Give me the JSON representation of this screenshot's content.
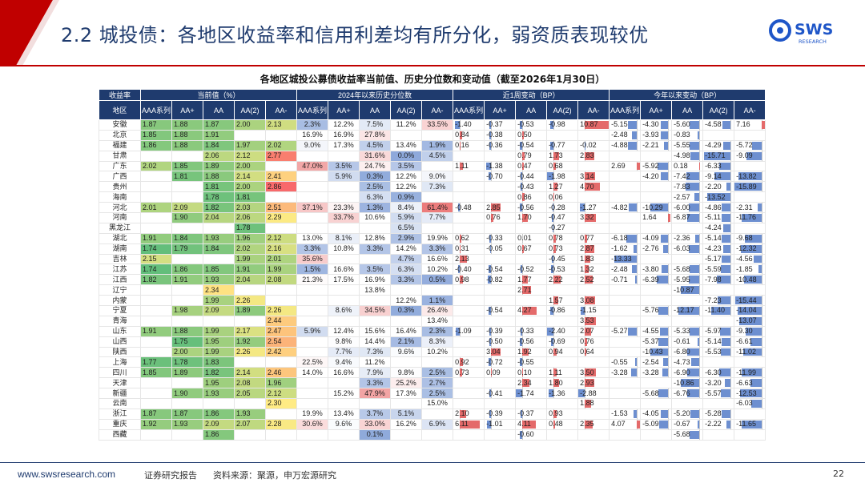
{
  "header": {
    "title": "2.2 城投债：各地区收益率和信用利差均有所分化，弱资质表现较优",
    "logo_text": "SWS",
    "logo_sub": "RESEARCH",
    "accent": "#c00000",
    "logo_color": "#1f56c8"
  },
  "table_title": "各地区城投公募债收益率当前值、历史分位数和变动值（截至2026年1月30日）",
  "col_groups": {
    "yield_label": "收益率",
    "current": "当前值（%）",
    "pct": "2024年以来历史分位数",
    "w1": "近1周变动（BP）",
    "ytd": "今年以来变动（BP）"
  },
  "region_label": "地区",
  "sub_cols": [
    "AAA系列",
    "AA+",
    "AA",
    "AA(2)",
    "AA-"
  ],
  "rows": [
    {
      "r": "安徽",
      "cur": [
        "1.87",
        "1.88",
        "1.87",
        "2.00",
        "2.13"
      ],
      "pct": [
        "2.3%",
        "12.2%",
        "7.5%",
        "11.2%",
        "33.5%"
      ],
      "w1": [
        "-1.40",
        "-0.37",
        "-0.53",
        "-0.98",
        "10.87"
      ],
      "ytd": [
        "-5.15",
        "-4.30",
        "-5.60",
        "-4.58",
        "7.16"
      ]
    },
    {
      "r": "北京",
      "cur": [
        "1.85",
        "1.88",
        "1.91",
        "",
        ""
      ],
      "pct": [
        "16.9%",
        "16.9%",
        "27.8%",
        "",
        ""
      ],
      "w1": [
        "0.84",
        "-0.38",
        "0.50",
        "",
        ""
      ],
      "ytd": [
        "-2.48",
        "-3.93",
        "-0.83",
        "",
        ""
      ]
    },
    {
      "r": "福建",
      "cur": [
        "1.86",
        "1.88",
        "1.84",
        "1.97",
        "2.02"
      ],
      "pct": [
        "9.0%",
        "17.3%",
        "4.5%",
        "13.4%",
        "1.9%"
      ],
      "w1": [
        "0.16",
        "-0.36",
        "-0.54",
        "-0.77",
        "-0.02"
      ],
      "ytd": [
        "-4.88",
        "-2.21",
        "-5.55",
        "-4.29",
        "-5.72"
      ]
    },
    {
      "r": "甘肃",
      "cur": [
        "",
        "",
        "2.06",
        "2.12",
        "2.77"
      ],
      "pct": [
        "",
        "",
        "31.6%",
        "0.0%",
        "4.5%"
      ],
      "w1": [
        "",
        "",
        "0.79",
        "1.73",
        "2.83"
      ],
      "ytd": [
        "",
        "",
        "-4.98",
        "-15.71",
        "-9.09"
      ]
    },
    {
      "r": "广东",
      "cur": [
        "2.02",
        "1.85",
        "1.89",
        "2.00",
        ""
      ],
      "pct": [
        "47.0%",
        "3.5%",
        "24.7%",
        "3.5%",
        ""
      ],
      "w1": [
        "1.11",
        "-1.38",
        "0.47",
        "0.68",
        ""
      ],
      "ytd": [
        "2.69",
        "-5.92",
        "0.18",
        "-6.33",
        ""
      ]
    },
    {
      "r": "广西",
      "cur": [
        "",
        "1.81",
        "1.88",
        "2.14",
        "2.41"
      ],
      "pct": [
        "",
        "5.9%",
        "0.3%",
        "12.2%",
        "9.0%"
      ],
      "w1": [
        "",
        "-0.70",
        "-0.44",
        "-1.98",
        "3.14"
      ],
      "ytd": [
        "",
        "-4.20",
        "-7.42",
        "-9.14",
        "-13.82"
      ]
    },
    {
      "r": "贵州",
      "cur": [
        "",
        "",
        "1.81",
        "2.00",
        "2.86"
      ],
      "pct": [
        "",
        "",
        "2.5%",
        "12.2%",
        "7.3%"
      ],
      "w1": [
        "",
        "",
        "-0.43",
        "1.27",
        "4.70"
      ],
      "ytd": [
        "",
        "",
        "-7.83",
        "-2.20",
        "-15.89"
      ]
    },
    {
      "r": "海南",
      "cur": [
        "",
        "",
        "1.78",
        "1.81",
        ""
      ],
      "pct": [
        "",
        "",
        "6.3%",
        "0.9%",
        ""
      ],
      "w1": [
        "",
        "",
        "0.86",
        "0.06",
        ""
      ],
      "ytd": [
        "",
        "",
        "-2.57",
        "-13.52",
        ""
      ]
    },
    {
      "r": "河北",
      "cur": [
        "2.01",
        "2.09",
        "1.82",
        "2.03",
        "2.51"
      ],
      "pct": [
        "37.1%",
        "23.3%",
        "1.3%",
        "8.4%",
        "61.4%"
      ],
      "w1": [
        "-0.48",
        "2.85",
        "-0.56",
        "-0.28",
        "-1.27"
      ],
      "ytd": [
        "-4.82",
        "-10.29",
        "-6.00",
        "-4.86",
        "-2.31"
      ]
    },
    {
      "r": "河南",
      "cur": [
        "",
        "1.90",
        "2.04",
        "2.06",
        "2.29"
      ],
      "pct": [
        "",
        "33.7%",
        "10.6%",
        "5.9%",
        "7.7%"
      ],
      "w1": [
        "",
        "0.76",
        "1.70",
        "-0.47",
        "3.32"
      ],
      "ytd": [
        "",
        "1.64",
        "-6.87",
        "-5.11",
        "-11.76"
      ]
    },
    {
      "r": "黑龙江",
      "cur": [
        "",
        "",
        "",
        "1.78",
        ""
      ],
      "pct": [
        "",
        "",
        "",
        "6.5%",
        ""
      ],
      "w1": [
        "",
        "",
        "",
        "-0.27",
        ""
      ],
      "ytd": [
        "",
        "",
        "",
        "-4.24",
        ""
      ]
    },
    {
      "r": "湖北",
      "cur": [
        "1.91",
        "1.84",
        "1.93",
        "1.96",
        "2.12"
      ],
      "pct": [
        "13.0%",
        "8.1%",
        "12.8%",
        "2.9%",
        "19.9%"
      ],
      "w1": [
        "0.62",
        "-0.33",
        "0.01",
        "0.78",
        "0.77"
      ],
      "ytd": [
        "-6.18",
        "-4.09",
        "-2.36",
        "-5.14",
        "-9.68"
      ]
    },
    {
      "r": "湖南",
      "cur": [
        "1.74",
        "1.79",
        "1.84",
        "2.02",
        "2.16"
      ],
      "pct": [
        "3.3%",
        "10.8%",
        "3.3%",
        "14.2%",
        "3.3%"
      ],
      "w1": [
        "0.31",
        "-0.05",
        "0.67",
        "0.73",
        "2.87"
      ],
      "ytd": [
        "-1.62",
        "-2.76",
        "-6.03",
        "-4.23",
        "-12.32"
      ]
    },
    {
      "r": "吉林",
      "cur": [
        "2.15",
        "",
        "",
        "1.99",
        "2.01"
      ],
      "pct": [
        "35.6%",
        "",
        "",
        "4.7%",
        "16.6%"
      ],
      "w1": [
        "2.13",
        "",
        "",
        "-0.45",
        "1.83"
      ],
      "ytd": [
        "-13.33",
        "",
        "",
        "-5.17",
        "-4.56"
      ]
    },
    {
      "r": "江苏",
      "cur": [
        "1.74",
        "1.86",
        "1.85",
        "1.91",
        "1.99"
      ],
      "pct": [
        "1.5%",
        "16.6%",
        "3.5%",
        "6.3%",
        "10.2%"
      ],
      "w1": [
        "-0.40",
        "-0.54",
        "-0.52",
        "-0.53",
        "1.32"
      ],
      "ytd": [
        "-2.48",
        "-3.80",
        "-5.68",
        "-5.59",
        "-1.85"
      ]
    },
    {
      "r": "江西",
      "cur": [
        "1.82",
        "1.91",
        "1.93",
        "2.04",
        "2.08"
      ],
      "pct": [
        "21.3%",
        "17.5%",
        "16.9%",
        "3.3%",
        "0.5%"
      ],
      "w1": [
        "0.98",
        "-0.82",
        "1.77",
        "2.22",
        "2.52"
      ],
      "ytd": [
        "-0.71",
        "-6.39",
        "-5.95",
        "-7.98",
        "-10.48"
      ]
    },
    {
      "r": "辽宁",
      "cur": [
        "",
        "",
        "2.34",
        "",
        ""
      ],
      "pct": [
        "",
        "",
        "13.8%",
        "",
        ""
      ],
      "w1": [
        "",
        "",
        "2.71",
        "",
        ""
      ],
      "ytd": [
        "",
        "",
        "-10.87",
        "",
        ""
      ]
    },
    {
      "r": "内蒙",
      "cur": [
        "",
        "",
        "1.99",
        "2.26",
        ""
      ],
      "pct": [
        "",
        "",
        "",
        "12.2%",
        "1.1%"
      ],
      "w1": [
        "",
        "",
        "",
        "1.57",
        "3.08"
      ],
      "ytd": [
        "",
        "",
        "",
        "-7.23",
        "-15.44"
      ]
    },
    {
      "r": "宁夏",
      "cur": [
        "",
        "1.98",
        "2.09",
        "1.89",
        "2.26"
      ],
      "pct": [
        "",
        "8.6%",
        "34.5%",
        "0.3%",
        "26.4%"
      ],
      "w1": [
        "",
        "-0.54",
        "4.27",
        "-0.86",
        "-1.15"
      ],
      "ytd": [
        "",
        "-5.76",
        "-12.17",
        "-11.40",
        "-14.04"
      ]
    },
    {
      "r": "青海",
      "cur": [
        "",
        "",
        "",
        "",
        "2.44"
      ],
      "pct": [
        "",
        "",
        "",
        "",
        "13.4%"
      ],
      "w1": [
        "",
        "",
        "",
        "",
        "3.53"
      ],
      "ytd": [
        "",
        "",
        "",
        "",
        "-13.07"
      ]
    },
    {
      "r": "山东",
      "cur": [
        "1.91",
        "1.88",
        "1.99",
        "2.17",
        "2.47"
      ],
      "pct": [
        "5.9%",
        "12.4%",
        "15.6%",
        "16.4%",
        "2.3%"
      ],
      "w1": [
        "-1.09",
        "-0.39",
        "-0.33",
        "-2.40",
        "2.07"
      ],
      "ytd": [
        "-5.27",
        "-4.55",
        "-5.33",
        "-5.97",
        "-9.30"
      ]
    },
    {
      "r": "山西",
      "cur": [
        "",
        "1.75",
        "1.95",
        "1.92",
        "2.54"
      ],
      "pct": [
        "",
        "9.8%",
        "14.4%",
        "2.1%",
        "8.3%"
      ],
      "w1": [
        "",
        "-0.50",
        "-0.56",
        "-0.69",
        "0.76"
      ],
      "ytd": [
        "",
        "-5.37",
        "-0.61",
        "-5.14",
        "-6.61"
      ]
    },
    {
      "r": "陕西",
      "cur": [
        "",
        "2.00",
        "1.99",
        "2.26",
        "2.42"
      ],
      "pct": [
        "",
        "7.7%",
        "7.3%",
        "9.6%",
        "10.2%"
      ],
      "w1": [
        "",
        "3.04",
        "1.92",
        "0.94",
        "0.64"
      ],
      "ytd": [
        "",
        "-10.43",
        "-6.80",
        "-5.53",
        "-11.02"
      ]
    },
    {
      "r": "上海",
      "cur": [
        "1.77",
        "1.78",
        "1.83",
        "",
        ""
      ],
      "pct": [
        "22.5%",
        "9.4%",
        "11.2%",
        "",
        ""
      ],
      "w1": [
        "0.92",
        "-0.72",
        "-0.55",
        "",
        ""
      ],
      "ytd": [
        "-0.55",
        "-2.54",
        "-4.73",
        "",
        ""
      ]
    },
    {
      "r": "四川",
      "cur": [
        "1.85",
        "1.89",
        "1.82",
        "2.14",
        "2.46"
      ],
      "pct": [
        "14.0%",
        "16.6%",
        "7.9%",
        "9.8%",
        "2.5%"
      ],
      "w1": [
        "0.73",
        "0.09",
        "0.10",
        "1.11",
        "3.50"
      ],
      "ytd": [
        "-3.28",
        "-3.28",
        "-6.90",
        "-6.30",
        "-11.99"
      ]
    },
    {
      "r": "天津",
      "cur": [
        "",
        "",
        "1.95",
        "2.08",
        "1.96"
      ],
      "pct": [
        "",
        "",
        "3.3%",
        "25.2%",
        "2.7%"
      ],
      "w1": [
        "",
        "",
        "2.34",
        "1.80",
        "2.93"
      ],
      "ytd": [
        "",
        "",
        "-10.86",
        "-3.20",
        "-6.63"
      ]
    },
    {
      "r": "新疆",
      "cur": [
        "",
        "1.90",
        "1.93",
        "2.05",
        "2.12"
      ],
      "pct": [
        "",
        "15.2%",
        "47.9%",
        "17.3%",
        "2.5%"
      ],
      "w1": [
        "",
        "-0.41",
        "-1.74",
        "-1.36",
        "-2.88"
      ],
      "ytd": [
        "",
        "-5.68",
        "-6.76",
        "-5.57",
        "-12.53"
      ]
    },
    {
      "r": "云南",
      "cur": [
        "",
        "",
        "",
        "",
        "2.30"
      ],
      "pct": [
        "",
        "",
        "",
        "",
        "15.0%"
      ],
      "w1": [
        "",
        "",
        "",
        "",
        "1.88"
      ],
      "ytd": [
        "",
        "",
        "",
        "",
        "-6.03"
      ]
    },
    {
      "r": "浙江",
      "cur": [
        "1.87",
        "1.87",
        "1.86",
        "1.93",
        ""
      ],
      "pct": [
        "19.9%",
        "13.4%",
        "3.7%",
        "5.1%",
        ""
      ],
      "w1": [
        "2.10",
        "-0.39",
        "-0.37",
        "0.93",
        ""
      ],
      "ytd": [
        "-1.53",
        "-4.05",
        "-5.20",
        "-5.28",
        ""
      ]
    },
    {
      "r": "重庆",
      "cur": [
        "1.92",
        "1.93",
        "2.09",
        "2.07",
        "2.28"
      ],
      "pct": [
        "30.6%",
        "9.6%",
        "33.0%",
        "16.2%",
        "6.9%"
      ],
      "w1": [
        "6.11",
        "-1.01",
        "4.11",
        "0.48",
        "2.35"
      ],
      "ytd": [
        "4.07",
        "-5.09",
        "-0.67",
        "-2.22",
        "-11.65"
      ]
    },
    {
      "r": "西藏",
      "cur": [
        "",
        "",
        "1.86",
        "",
        ""
      ],
      "pct": [
        "",
        "",
        "0.1%",
        "",
        ""
      ],
      "w1": [
        "",
        "",
        "-0.60",
        "",
        ""
      ],
      "ytd": [
        "",
        "",
        "-5.68",
        "",
        ""
      ]
    }
  ],
  "footer": {
    "url": "www.swsresearch.com",
    "report": "证券研究报告",
    "source": "资料来源：聚源，申万宏源研究",
    "page": "22"
  }
}
